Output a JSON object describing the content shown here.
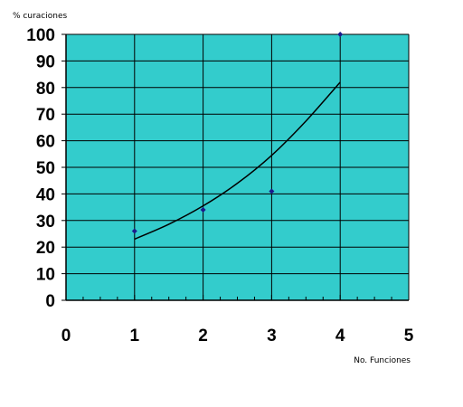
{
  "chart_data": {
    "type": "scatter",
    "title": "",
    "xlabel": "No. Funciones",
    "ylabel": "% curaciones",
    "xlim": [
      0,
      5
    ],
    "ylim": [
      0,
      100
    ],
    "xticks": [
      0,
      1,
      2,
      3,
      4,
      5
    ],
    "yticks": [
      0,
      10,
      20,
      30,
      40,
      50,
      60,
      70,
      80,
      90,
      100
    ],
    "grid": true,
    "plot_background": "#33CCCC",
    "point_color": "#1a1a8c",
    "line_color": "#000000",
    "series": [
      {
        "type": "scatter",
        "x": [
          1,
          2,
          3,
          4
        ],
        "y": [
          26,
          34,
          41,
          100
        ]
      },
      {
        "type": "line",
        "x": [
          1,
          1.5,
          2,
          2.5,
          3,
          3.5,
          4
        ],
        "y": [
          23,
          28.6,
          35.5,
          44,
          54.5,
          67.4,
          82
        ]
      }
    ]
  }
}
